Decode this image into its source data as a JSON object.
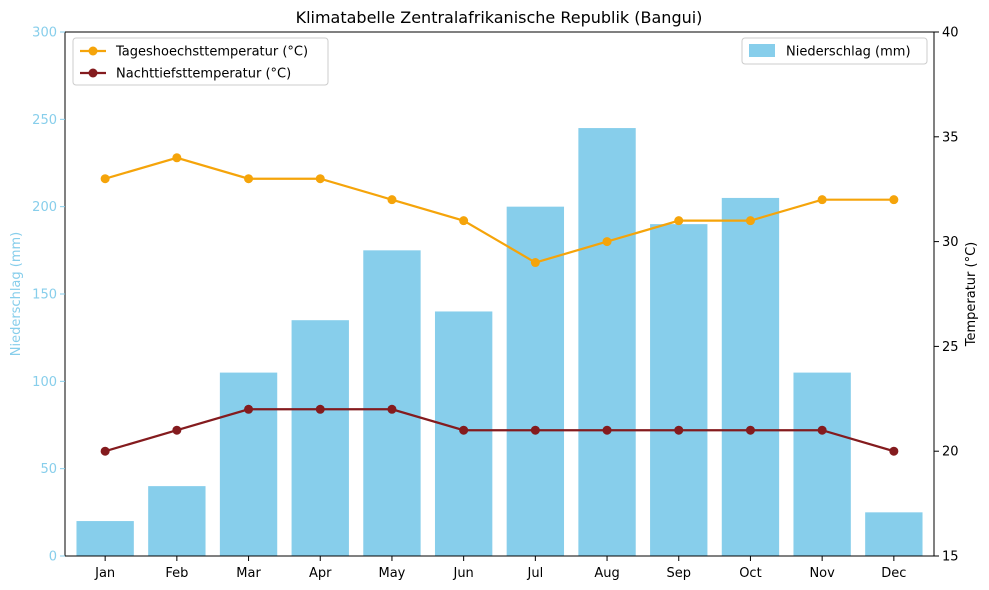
{
  "chart_data": {
    "type": "bar+line",
    "title": "Klimatabelle Zentralafrikanische Republik (Bangui)",
    "categories": [
      "Jan",
      "Feb",
      "Mar",
      "Apr",
      "May",
      "Jun",
      "Jul",
      "Aug",
      "Sep",
      "Oct",
      "Nov",
      "Dec"
    ],
    "bars": {
      "name": "Niederschlag (mm)",
      "axis": "left",
      "color": "#87CEEB",
      "values": [
        20,
        40,
        105,
        135,
        175,
        140,
        200,
        245,
        190,
        205,
        105,
        25
      ]
    },
    "lines": [
      {
        "name": "Tageshoechsttemperatur (°C)",
        "axis": "right",
        "color": "#F5A40A",
        "values": [
          33,
          34,
          33,
          33,
          32,
          31,
          29,
          30,
          31,
          31,
          32,
          32
        ]
      },
      {
        "name": "Nachttiefsttemperatur (°C)",
        "axis": "right",
        "color": "#841B1E",
        "values": [
          20,
          21,
          22,
          22,
          22,
          21,
          21,
          21,
          21,
          21,
          21,
          20
        ]
      }
    ],
    "y_left": {
      "label": "Niederschlag (mm)",
      "color": "#87CEEB",
      "lim": [
        0,
        300
      ],
      "ticks": [
        "0",
        "50",
        "100",
        "150",
        "200",
        "250",
        "300"
      ]
    },
    "y_right": {
      "label": "Temperatur (°C)",
      "color": "#000000",
      "lim": [
        15,
        40
      ],
      "ticks": [
        "15",
        "20",
        "25",
        "30",
        "35",
        "40"
      ]
    },
    "grid": false,
    "legend_lines_placement": "top-left",
    "legend_bars_placement": "top-right"
  }
}
